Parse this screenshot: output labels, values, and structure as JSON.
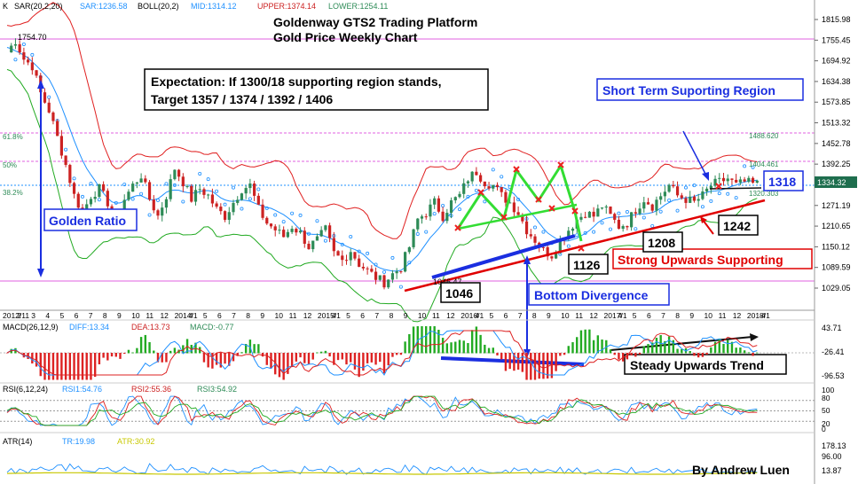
{
  "indicator_bar": {
    "k": "K",
    "sar_label": "SAR(20,2,20)",
    "sar_value": "SAR:1236.58",
    "boll_label": "BOLL(20,2)",
    "mid_value": "MID:1314.12",
    "upper_value": "UPPER:1374.14",
    "lower_value": "LOWER:1254.11"
  },
  "title": {
    "line1": "Goldenway GTS2 Trading Platform",
    "line2": "Gold Price Weekly Chart"
  },
  "annotations": {
    "expectation_line1": "Expectation: If 1300/18 supporting region stands,",
    "expectation_line2": "Target 1357 / 1374 / 1392 / 1406",
    "short_term": "Short Term Suporting Region",
    "golden_ratio": "Golden Ratio",
    "bottom_divergence": "Bottom Divergence",
    "strong_support": "Strong Upwards Supporting",
    "steady_trend": "Steady Upwards Trend",
    "author": "By Andrew Luen",
    "level_1318": "1318",
    "level_1046": "1046",
    "level_1126": "1126",
    "level_1208": "1208",
    "level_1242": "1242",
    "high_label": "1754.70",
    "low_label": "1046.47",
    "fib_618": "61.8%",
    "fib_50": "50%",
    "fib_382": "38.2%",
    "fib_r1": "1488.620",
    "fib_r2": "1404.461",
    "fib_r3": "1320.303",
    "last_price": "1334.32"
  },
  "panels": {
    "macd_label": "MACD(26,12,9)",
    "macd_diff": "DIFF:13.34",
    "macd_dea": "DEA:13.73",
    "macd_macd": "MACD:-0.77",
    "rsi_label": "RSI(6,12,24)",
    "rsi1": "RSI1:54.76",
    "rsi2": "RSI2:55.36",
    "rsi3": "RSI3:54.92",
    "atr_label": "ATR(14)",
    "atr_tr": "TR:19.98",
    "atr_atr": "ATR:30.92"
  },
  "colors": {
    "up": "#2e8b57",
    "down": "#cc2222",
    "upper_band": "#e02020",
    "lower_band": "#22aa22",
    "mid_band": "#1e90ff",
    "fib_line": "#e060e0",
    "annotation_blue": "#0033cc",
    "support_red": "#e00000"
  },
  "chart_data": {
    "type": "candlestick",
    "title": "Goldenway GTS2 Trading Platform — Gold Price Weekly Chart",
    "x_tick_labels": [
      "2012/11",
      "2",
      "3",
      "4",
      "5",
      "6",
      "7",
      "8",
      "9",
      "10",
      "11",
      "12",
      "2014/1",
      "4",
      "5",
      "6",
      "7",
      "8",
      "9",
      "10",
      "11",
      "12",
      "2015/1",
      "4",
      "5",
      "6",
      "7",
      "8",
      "9",
      "10",
      "11",
      "12",
      "2016/1",
      "4",
      "5",
      "6",
      "7",
      "8",
      "9",
      "10",
      "11",
      "12",
      "2017/1",
      "4",
      "5",
      "6",
      "7",
      "8",
      "9",
      "10",
      "11",
      "12",
      "2018/1",
      "4"
    ],
    "y_tick_labels": [
      "1815.98",
      "1755.45",
      "1694.92",
      "1634.38",
      "1573.85",
      "1513.32",
      "1452.78",
      "1392.25",
      "1271.19",
      "1210.65",
      "1150.12",
      "1089.59",
      "1029.05"
    ],
    "ylim": [
      1000,
      1830
    ],
    "close_path": [
      [
        0,
        1720
      ],
      [
        2,
        1755
      ],
      [
        4,
        1700
      ],
      [
        6,
        1680
      ],
      [
        8,
        1600
      ],
      [
        10,
        1550
      ],
      [
        12,
        1470
      ],
      [
        14,
        1390
      ],
      [
        16,
        1300
      ],
      [
        18,
        1250
      ],
      [
        20,
        1300
      ],
      [
        22,
        1320
      ],
      [
        24,
        1280
      ],
      [
        26,
        1220
      ],
      [
        28,
        1290
      ],
      [
        30,
        1330
      ],
      [
        32,
        1360
      ],
      [
        34,
        1290
      ],
      [
        36,
        1240
      ],
      [
        38,
        1300
      ],
      [
        40,
        1380
      ],
      [
        42,
        1340
      ],
      [
        44,
        1290
      ],
      [
        46,
        1320
      ],
      [
        48,
        1300
      ],
      [
        50,
        1260
      ],
      [
        52,
        1240
      ],
      [
        54,
        1280
      ],
      [
        56,
        1320
      ],
      [
        58,
        1330
      ],
      [
        60,
        1260
      ],
      [
        62,
        1220
      ],
      [
        64,
        1200
      ],
      [
        66,
        1180
      ],
      [
        68,
        1210
      ],
      [
        70,
        1190
      ],
      [
        72,
        1150
      ],
      [
        74,
        1170
      ],
      [
        76,
        1200
      ],
      [
        78,
        1130
      ],
      [
        80,
        1110
      ],
      [
        82,
        1140
      ],
      [
        84,
        1100
      ],
      [
        86,
        1080
      ],
      [
        88,
        1060
      ],
      [
        90,
        1046
      ],
      [
        92,
        1070
      ],
      [
        94,
        1090
      ],
      [
        96,
        1150
      ],
      [
        98,
        1230
      ],
      [
        100,
        1250
      ],
      [
        102,
        1280
      ],
      [
        104,
        1240
      ],
      [
        106,
        1280
      ],
      [
        108,
        1300
      ],
      [
        110,
        1350
      ],
      [
        112,
        1370
      ],
      [
        114,
        1340
      ],
      [
        116,
        1330
      ],
      [
        118,
        1300
      ],
      [
        120,
        1280
      ],
      [
        122,
        1250
      ],
      [
        124,
        1200
      ],
      [
        126,
        1170
      ],
      [
        128,
        1140
      ],
      [
        130,
        1126
      ],
      [
        132,
        1170
      ],
      [
        134,
        1200
      ],
      [
        136,
        1230
      ],
      [
        138,
        1250
      ],
      [
        140,
        1240
      ],
      [
        142,
        1270
      ],
      [
        144,
        1240
      ],
      [
        146,
        1210
      ],
      [
        148,
        1220
      ],
      [
        150,
        1260
      ],
      [
        152,
        1290
      ],
      [
        154,
        1270
      ],
      [
        156,
        1300
      ],
      [
        158,
        1330
      ],
      [
        160,
        1300
      ],
      [
        162,
        1290
      ],
      [
        164,
        1280
      ],
      [
        166,
        1300
      ],
      [
        168,
        1330
      ],
      [
        170,
        1340
      ],
      [
        172,
        1350
      ],
      [
        174,
        1330
      ],
      [
        176,
        1340
      ],
      [
        178,
        1334
      ]
    ],
    "key_levels": {
      "high": 1754.7,
      "low": 1046.47,
      "fib_618": 1488.62,
      "fib_50": 1404.461,
      "fib_382": 1320.303,
      "last": 1334.32
    },
    "support_points": [
      1046,
      1126,
      1208,
      1242,
      1318
    ],
    "panels": {
      "macd": {
        "ticks": [
          43.71,
          -26.41,
          -96.53
        ]
      },
      "rsi": {
        "ticks": [
          100,
          50,
          0
        ]
      },
      "atr": {
        "ticks": [
          178.13,
          96.0,
          13.87
        ]
      }
    }
  }
}
